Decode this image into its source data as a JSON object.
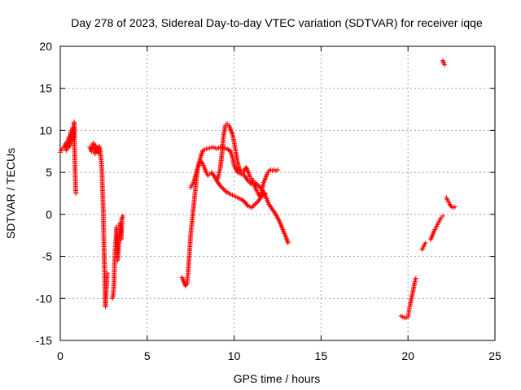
{
  "chart_data": {
    "type": "scatter",
    "title": "Day 278 of 2023, Sidereal Day-to-day VTEC variation (SDTVAR) for receiver iqqe",
    "xlabel": "GPS time / hours",
    "ylabel": "SDTVAR / TECUs",
    "xlim": [
      0,
      25
    ],
    "ylim": [
      -15,
      20
    ],
    "xticks": [
      "0",
      "5",
      "10",
      "15",
      "20",
      "25"
    ],
    "yticks": [
      "-15",
      "-10",
      "-5",
      "0",
      "5",
      "10",
      "15",
      "20"
    ],
    "grid": true,
    "marker": "+",
    "series": [
      {
        "name": "SDTVAR",
        "color": "#ff0000",
        "segments": [
          [
            [
              0.0,
              7.4
            ],
            [
              0.1,
              7.8
            ],
            [
              0.2,
              8.0
            ],
            [
              0.3,
              8.4
            ],
            [
              0.35,
              7.6
            ],
            [
              0.4,
              8.7
            ],
            [
              0.45,
              7.9
            ],
            [
              0.5,
              9.2
            ],
            [
              0.55,
              8.1
            ],
            [
              0.6,
              9.8
            ],
            [
              0.65,
              8.6
            ],
            [
              0.7,
              10.3
            ],
            [
              0.75,
              9.0
            ],
            [
              0.8,
              11.0
            ],
            [
              0.82,
              8.0
            ],
            [
              0.84,
              6.5
            ],
            [
              0.86,
              5.0
            ],
            [
              0.88,
              3.5
            ],
            [
              0.9,
              2.5
            ]
          ],
          [
            [
              1.7,
              8.0
            ],
            [
              1.8,
              7.5
            ],
            [
              1.9,
              8.5
            ],
            [
              2.0,
              7.2
            ],
            [
              2.05,
              8.2
            ],
            [
              2.1,
              7.6
            ],
            [
              2.2,
              7.3
            ],
            [
              2.25,
              8.1
            ],
            [
              2.3,
              7.5
            ],
            [
              2.35,
              6.5
            ],
            [
              2.4,
              5.0
            ],
            [
              2.42,
              3.5
            ],
            [
              2.45,
              2.0
            ],
            [
              2.48,
              0.0
            ],
            [
              2.5,
              -2.0
            ],
            [
              2.52,
              -4.0
            ],
            [
              2.55,
              -6.5
            ],
            [
              2.57,
              -8.5
            ],
            [
              2.58,
              -10.0
            ],
            [
              2.6,
              -11.0
            ],
            [
              2.65,
              -9.0
            ],
            [
              2.7,
              -7.0
            ]
          ],
          [
            [
              3.0,
              -10.0
            ],
            [
              3.05,
              -9.5
            ],
            [
              3.1,
              -8.0
            ],
            [
              3.12,
              -6.0
            ],
            [
              3.15,
              -4.5
            ],
            [
              3.2,
              -3.0
            ],
            [
              3.25,
              -1.5
            ],
            [
              3.3,
              -5.5
            ],
            [
              3.35,
              -4.0
            ],
            [
              3.4,
              -2.5
            ],
            [
              3.45,
              -1.0
            ],
            [
              3.5,
              -3.0
            ],
            [
              3.55,
              -0.5
            ],
            [
              3.6,
              -0.2
            ]
          ],
          [
            [
              7.0,
              -7.5
            ],
            [
              7.1,
              -8.0
            ],
            [
              7.2,
              -8.5
            ],
            [
              7.3,
              -8.2
            ],
            [
              7.35,
              -7.0
            ],
            [
              7.4,
              -5.5
            ],
            [
              7.45,
              -4.0
            ],
            [
              7.5,
              -2.5
            ],
            [
              7.55,
              -1.5
            ],
            [
              7.6,
              -0.5
            ],
            [
              7.65,
              0.5
            ],
            [
              7.7,
              1.5
            ],
            [
              7.75,
              2.5
            ],
            [
              7.8,
              3.5
            ],
            [
              7.85,
              4.5
            ],
            [
              7.9,
              5.5
            ],
            [
              8.0,
              6.3
            ],
            [
              8.1,
              7.0
            ],
            [
              8.2,
              7.6
            ],
            [
              8.4,
              7.8
            ],
            [
              8.6,
              7.9
            ],
            [
              8.8,
              8.0
            ],
            [
              9.0,
              7.8
            ],
            [
              9.2,
              8.0
            ],
            [
              9.4,
              7.9
            ],
            [
              9.6,
              7.8
            ],
            [
              9.8,
              7.5
            ],
            [
              9.9,
              6.8
            ],
            [
              10.0,
              5.8
            ],
            [
              10.2,
              5.0
            ],
            [
              10.4,
              4.8
            ],
            [
              10.6,
              4.6
            ],
            [
              10.8,
              4.0
            ],
            [
              11.0,
              3.6
            ],
            [
              11.2,
              3.8
            ],
            [
              11.4,
              3.4
            ],
            [
              11.6,
              3.0
            ],
            [
              11.8,
              2.2
            ],
            [
              12.0,
              1.2
            ],
            [
              12.2,
              0.6
            ],
            [
              12.4,
              0.0
            ],
            [
              12.6,
              -0.8
            ],
            [
              12.8,
              -1.8
            ],
            [
              13.0,
              -2.8
            ],
            [
              13.1,
              -3.4
            ]
          ],
          [
            [
              7.5,
              3.2
            ],
            [
              7.6,
              3.6
            ],
            [
              7.7,
              4.0
            ],
            [
              7.8,
              4.8
            ],
            [
              7.9,
              5.5
            ],
            [
              8.0,
              6.0
            ],
            [
              8.1,
              6.3
            ],
            [
              8.2,
              6.0
            ],
            [
              8.3,
              5.5
            ],
            [
              8.4,
              5.0
            ],
            [
              8.5,
              4.6
            ],
            [
              8.6,
              4.8
            ],
            [
              8.7,
              5.0
            ],
            [
              8.8,
              4.7
            ],
            [
              8.9,
              4.4
            ],
            [
              9.0,
              4.0
            ],
            [
              9.1,
              4.6
            ],
            [
              9.2,
              5.5
            ],
            [
              9.3,
              7.2
            ],
            [
              9.4,
              9.5
            ],
            [
              9.5,
              10.6
            ],
            [
              9.6,
              10.8
            ],
            [
              9.7,
              10.6
            ],
            [
              9.8,
              10.1
            ],
            [
              9.9,
              9.6
            ],
            [
              10.0,
              8.6
            ],
            [
              10.1,
              7.4
            ],
            [
              10.2,
              6.2
            ],
            [
              10.3,
              5.4
            ],
            [
              10.4,
              5.1
            ],
            [
              10.5,
              4.9
            ],
            [
              10.6,
              5.3
            ],
            [
              10.7,
              5.6
            ],
            [
              10.8,
              5.1
            ],
            [
              10.9,
              4.5
            ],
            [
              11.0,
              4.3
            ],
            [
              11.1,
              3.8
            ],
            [
              11.2,
              3.3
            ],
            [
              11.3,
              2.8
            ],
            [
              11.4,
              2.4
            ],
            [
              11.5,
              2.1
            ],
            [
              11.6,
              3.0
            ],
            [
              11.7,
              3.8
            ],
            [
              11.8,
              4.3
            ],
            [
              11.9,
              4.8
            ],
            [
              12.0,
              5.2
            ],
            [
              12.1,
              5.3
            ],
            [
              12.2,
              5.2
            ],
            [
              12.3,
              5.3
            ],
            [
              12.4,
              5.2
            ],
            [
              12.5,
              5.3
            ]
          ],
          [
            [
              9.0,
              4.0
            ],
            [
              9.2,
              3.4
            ],
            [
              9.4,
              3.0
            ],
            [
              9.6,
              2.6
            ],
            [
              9.8,
              2.4
            ],
            [
              10.0,
              2.2
            ],
            [
              10.2,
              2.0
            ],
            [
              10.4,
              1.8
            ],
            [
              10.6,
              1.5
            ],
            [
              10.8,
              1.0
            ],
            [
              11.0,
              0.8
            ],
            [
              11.2,
              1.2
            ],
            [
              11.4,
              1.6
            ],
            [
              11.6,
              2.2
            ],
            [
              11.8,
              2.5
            ]
          ],
          [
            [
              19.6,
              -12.1
            ],
            [
              19.7,
              -12.2
            ],
            [
              19.8,
              -12.3
            ],
            [
              19.9,
              -12.3
            ],
            [
              20.0,
              -12.2
            ],
            [
              20.05,
              -11.6
            ],
            [
              20.1,
              -11.0
            ],
            [
              20.15,
              -10.5
            ],
            [
              20.2,
              -10.0
            ],
            [
              20.25,
              -9.5
            ],
            [
              20.3,
              -9.0
            ],
            [
              20.35,
              -8.5
            ],
            [
              20.4,
              -8.0
            ],
            [
              20.45,
              -7.6
            ]
          ],
          [
            [
              20.8,
              -4.2
            ],
            [
              20.9,
              -3.8
            ],
            [
              21.0,
              -3.4
            ]
          ],
          [
            [
              21.3,
              -3.0
            ],
            [
              21.4,
              -2.5
            ],
            [
              21.5,
              -2.0
            ],
            [
              21.6,
              -1.6
            ],
            [
              21.7,
              -1.2
            ],
            [
              21.8,
              -0.8
            ],
            [
              21.9,
              -0.4
            ],
            [
              22.0,
              -0.2
            ]
          ],
          [
            [
              22.2,
              2.0
            ],
            [
              22.3,
              1.6
            ],
            [
              22.4,
              1.2
            ],
            [
              22.5,
              0.9
            ],
            [
              22.6,
              0.8
            ],
            [
              22.7,
              0.9
            ]
          ],
          [
            [
              22.0,
              18.3
            ],
            [
              22.05,
              18.0
            ],
            [
              22.1,
              17.8
            ]
          ]
        ]
      }
    ]
  }
}
